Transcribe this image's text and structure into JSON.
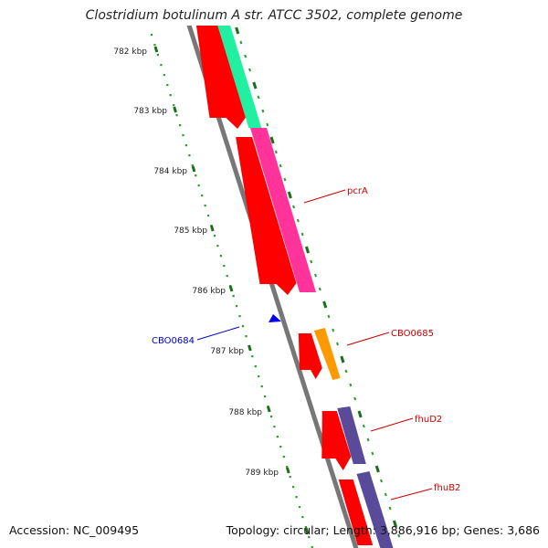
{
  "title": "Clostridium botulinum A str. ATCC 3502, complete genome",
  "accession": "Accession: NC_009495",
  "topology": "Topology: circular; Length: 3,886,916 bp; Genes: 3,686",
  "colors": {
    "backbone": "#777777",
    "tick_dot": "#2a9a2a",
    "tick_major": "#1a6e1a",
    "ruler_label": "#222222",
    "gene_label_plus": "#cc0000",
    "gene_label_minus": "#0000cc",
    "strand_red": "#ff0000",
    "green_feature": "#22f0a0",
    "pink_feature": "#ff3399",
    "orange_feature": "#ff9900",
    "purple_feature": "#5a4a9a",
    "blue_marker": "#0000ee"
  },
  "ruler": [
    {
      "label": "782 kbp"
    },
    {
      "label": "783 kbp"
    },
    {
      "label": "784 kbp"
    },
    {
      "label": "785 kbp"
    },
    {
      "label": "786 kbp"
    },
    {
      "label": "787 kbp"
    },
    {
      "label": "788 kbp"
    },
    {
      "label": "789 kbp"
    }
  ],
  "genes": [
    {
      "label": "pcrA"
    },
    {
      "label": "CBO0685"
    },
    {
      "label": "fhuD2"
    },
    {
      "label": "fhuB2"
    },
    {
      "label": "CBO0684"
    }
  ]
}
